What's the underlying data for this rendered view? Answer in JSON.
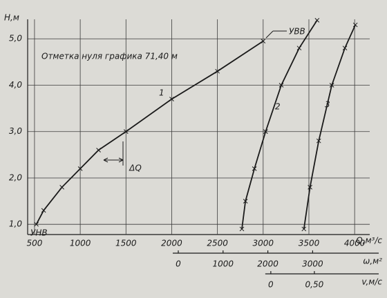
{
  "chart_data": {
    "type": "line",
    "ylabel": "H,м",
    "ylim": [
      0.78,
      5.42
    ],
    "yticks": [
      {
        "value": 1,
        "label": "1,0"
      },
      {
        "value": 2,
        "label": "2,0"
      },
      {
        "value": 3,
        "label": "3,0"
      },
      {
        "value": 4,
        "label": "4,0"
      },
      {
        "value": 5,
        "label": "5,0"
      }
    ],
    "grid": true,
    "x_axes": [
      {
        "label": "Q,м³/с",
        "xlim": [
          425,
          4165
        ],
        "xticks": [
          500,
          1000,
          1500,
          2000,
          2500,
          3000,
          3500,
          4000
        ]
      },
      {
        "label": "ω,м²",
        "xlim": [
          -3364,
          4275
        ],
        "xticks": [
          0,
          1000,
          2000,
          3000
        ]
      },
      {
        "label": "v,м/с",
        "xlim": [
          -2.79,
          1.135
        ],
        "xticks": [
          0,
          {
            "value": 0.5,
            "label": "0,50"
          }
        ]
      }
    ],
    "series": [
      {
        "name": "1",
        "color": "#1a1a1a",
        "x": [
          520,
          600,
          800,
          1000,
          1200,
          1500,
          2000,
          2500,
          3000
        ],
        "values": [
          1.0,
          1.3,
          1.8,
          2.2,
          2.6,
          3.0,
          3.7,
          4.3,
          4.95
        ]
      },
      {
        "name": "2",
        "color": "#1a1a1a",
        "x": [
          1420,
          1500,
          1700,
          1950,
          2300,
          2700,
          3100
        ],
        "values": [
          0.9,
          1.5,
          2.2,
          3.0,
          4.0,
          4.8,
          5.4
        ]
      },
      {
        "name": "3",
        "color": "#1a1a1a",
        "x": [
          0.38,
          0.45,
          0.55,
          0.7,
          0.85,
          0.97
        ],
        "values": [
          0.9,
          1.8,
          2.8,
          4.0,
          4.8,
          5.3
        ]
      }
    ],
    "annotations": [
      "Отметка нуля графика 71,40 м",
      "УВВ",
      "УНВ",
      "ΔQ"
    ]
  }
}
